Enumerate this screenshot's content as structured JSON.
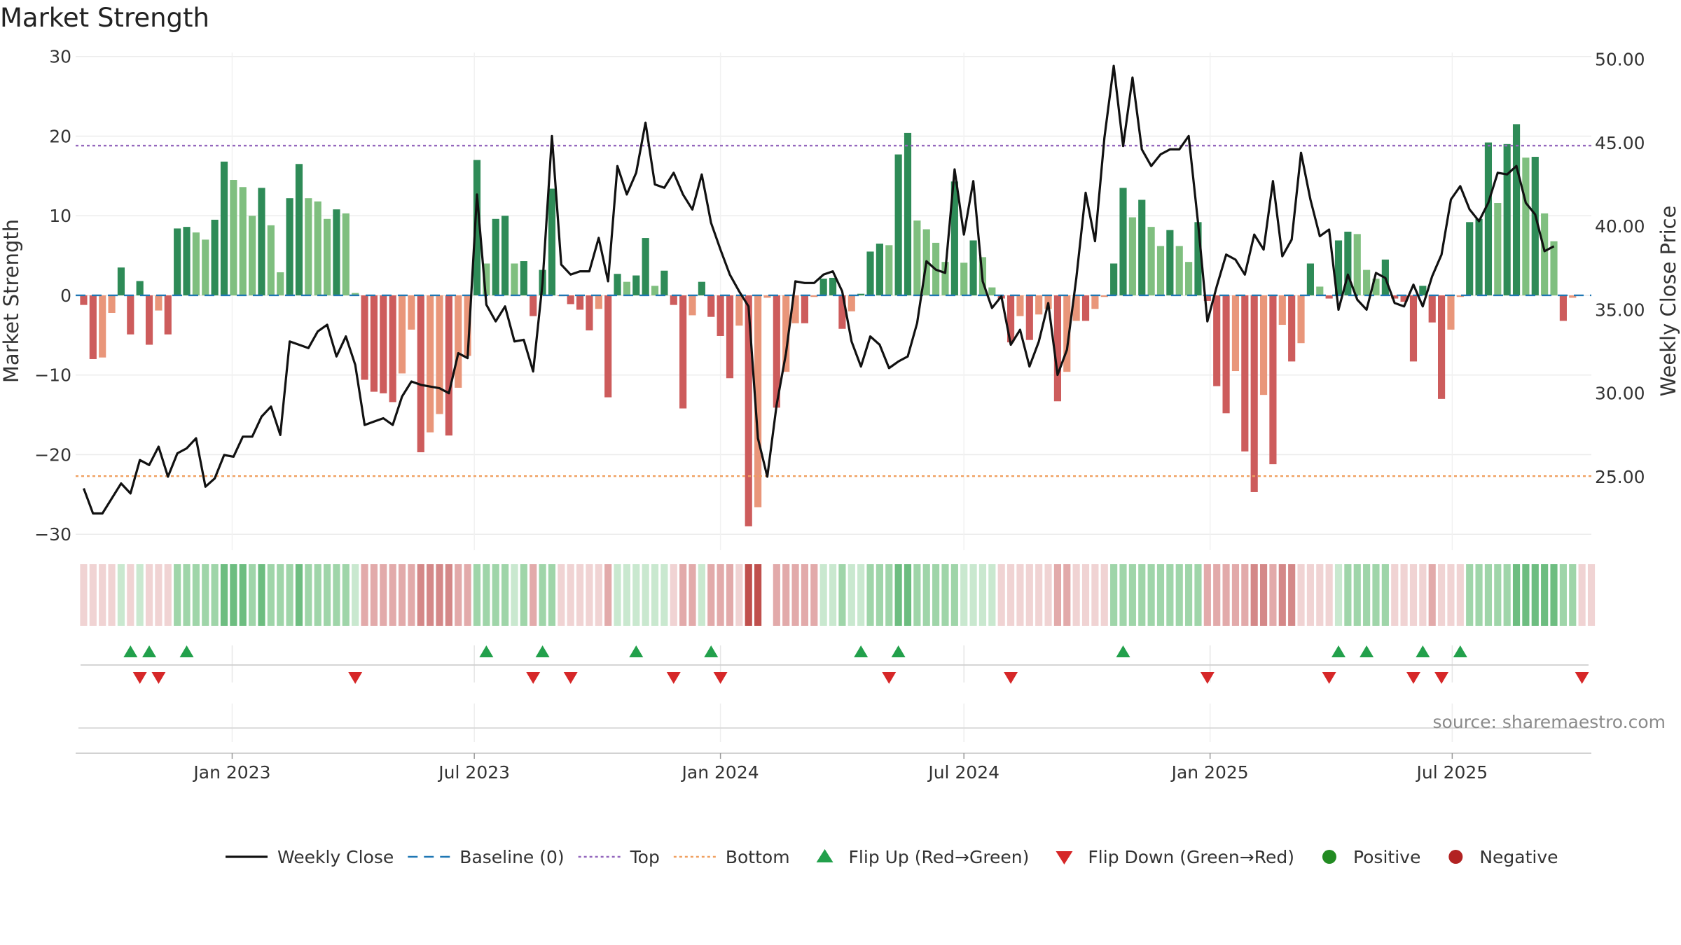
{
  "chart_data": {
    "type": "bar",
    "title": "Market Strength",
    "ylabel": "Market Strength",
    "y2label": "Weekly Close Price",
    "ylim": [
      -32,
      30.5
    ],
    "y2lim": [
      20.6,
      50.4
    ],
    "yticks": [
      -30,
      -20,
      -10,
      0,
      10,
      20,
      30
    ],
    "yticklabels": [
      "−30",
      "−20",
      "−10",
      "0",
      "10",
      "20",
      "30"
    ],
    "y2ticks": [
      25,
      30,
      35,
      40,
      45,
      50
    ],
    "y2ticklabels": [
      "25.00",
      "30.00",
      "35.00",
      "40.00",
      "45.00",
      "50.00"
    ],
    "xlim": [
      "2022-09-06",
      "2025-10-13"
    ],
    "xticks": [
      "2023-01-01",
      "2023-07-01",
      "2024-01-01",
      "2024-07-01",
      "2025-01-01",
      "2025-07-01"
    ],
    "xticklabels": [
      "Jan 2023",
      "Jul 2023",
      "Jan 2024",
      "Jul 2024",
      "Jan 2025",
      "Jul 2025"
    ],
    "grid": true,
    "x_start": "2022-09-12",
    "x_step_days": 7,
    "strength": [
      -1.2,
      -8,
      -7.8,
      -2.2,
      3.5,
      -4.9,
      1.8,
      -6.2,
      -1.9,
      -4.9,
      8.4,
      8.6,
      7.9,
      7,
      9.5,
      16.8,
      14.5,
      13.6,
      10,
      13.5,
      8.8,
      2.9,
      12.2,
      16.5,
      12.2,
      11.8,
      9.6,
      10.8,
      10.3,
      0.3,
      -10.6,
      -12.1,
      -12.3,
      -13.4,
      -9.8,
      -4.3,
      -19.7,
      -17.2,
      -14.9,
      -17.6,
      -11.6,
      -7.6,
      17,
      4,
      9.6,
      10,
      4,
      4.3,
      -2.6,
      3.2,
      13.4,
      -0.1,
      -1.1,
      -1.8,
      -4.4,
      -1.7,
      -12.8,
      2.7,
      1.7,
      2.5,
      7.2,
      1.2,
      3.1,
      -1.2,
      -14.2,
      -2.5,
      1.7,
      -2.7,
      -5.1,
      -10.4,
      -3.8,
      -29,
      -26.6,
      -0.3,
      -14.1,
      -9.6,
      -3.5,
      -3.5,
      -0.2,
      2.1,
      2.2,
      -4.2,
      -2,
      0.2,
      5.5,
      6.5,
      6.3,
      17.7,
      20.4,
      9.4,
      8.3,
      6.6,
      4.2,
      14.3,
      4.1,
      6.9,
      4.8,
      1,
      -0.4,
      -5.9,
      -2.6,
      -5.6,
      -2.4,
      -1.7,
      -13.3,
      -9.6,
      -3.2,
      -3.2,
      -1.7,
      -0.2,
      4,
      13.5,
      9.8,
      12,
      8.6,
      6.2,
      8.2,
      6.2,
      4.2,
      9.2,
      -0.7,
      -11.4,
      -14.8,
      -9.5,
      -19.6,
      -24.7,
      -12.5,
      -21.2,
      -3.7,
      -8.3,
      -6,
      4,
      1.1,
      -0.4,
      6.9,
      8,
      7.7,
      3.2,
      2.1,
      4.5,
      -0.4,
      -0.8,
      -8.3,
      1.2,
      -3.4,
      -13,
      -4.3,
      -0.2,
      9.2,
      9.6,
      19.2,
      11.6,
      19,
      21.5,
      17.3,
      17.4,
      10.3,
      6.8,
      -3.2,
      -0.3
    ],
    "weekly_close": [
      24.3,
      22.8,
      22.8,
      23.7,
      24.6,
      24,
      26,
      25.7,
      26.8,
      25,
      26.4,
      26.7,
      27.3,
      24.4,
      24.9,
      26.3,
      26.2,
      27.4,
      27.4,
      28.6,
      29.2,
      27.5,
      33.1,
      32.9,
      32.7,
      33.7,
      34.1,
      32.2,
      33.4,
      31.7,
      28.1,
      28.3,
      28.5,
      28.1,
      29.8,
      30.7,
      30.5,
      30.4,
      30.3,
      30,
      32.4,
      32.1,
      41.9,
      35.3,
      34.3,
      35.2,
      33.1,
      33.2,
      31.3,
      36.6,
      45.4,
      37.7,
      37.1,
      37.3,
      37.3,
      39.3,
      36.7,
      43.6,
      41.9,
      43.2,
      46.2,
      42.5,
      42.3,
      43.2,
      41.9,
      41,
      43.1,
      40.2,
      38.6,
      37.1,
      36.1,
      35.2,
      27.3,
      25,
      29.3,
      32.4,
      36.7,
      36.6,
      36.6,
      37.1,
      37.3,
      36.1,
      33.1,
      31.6,
      33.4,
      32.9,
      31.5,
      31.9,
      32.2,
      34.2,
      37.9,
      37.4,
      37.2,
      43.4,
      39.5,
      42.7,
      36.7,
      35.1,
      35.8,
      32.9,
      33.8,
      31.6,
      33.1,
      35.4,
      31.1,
      32.6,
      36.9,
      42,
      39.1,
      45.3,
      49.6,
      44.8,
      48.9,
      44.6,
      43.6,
      44.3,
      44.6,
      44.6,
      45.4,
      40.2,
      34.3,
      36.4,
      38.3,
      38,
      37.1,
      39.5,
      38.6,
      42.7,
      38.2,
      39.2,
      44.4,
      41.6,
      39.4,
      39.8,
      35,
      37.1,
      35.6,
      35,
      37.2,
      36.9,
      35.4,
      35.2,
      36.5,
      35.2,
      37,
      38.3,
      41.6,
      42.4,
      41,
      40.3,
      41.4,
      43.2,
      43.1,
      43.6,
      41.4,
      40.7,
      38.5,
      38.8
    ],
    "strip_levels": [
      1,
      1,
      1,
      1,
      -1,
      1,
      -1,
      1,
      1,
      1,
      -2,
      -2,
      -2,
      -2,
      -2,
      -3,
      -3,
      -3,
      -2,
      -3,
      -2,
      -2,
      -2,
      -3,
      -2,
      -2,
      -2,
      -2,
      -2,
      -1,
      2,
      2,
      2,
      2,
      2,
      2,
      3,
      3,
      3,
      3,
      2,
      2,
      -2,
      -2,
      -2,
      -2,
      -1,
      -2,
      2,
      -2,
      -2,
      1,
      1,
      1,
      1,
      1,
      2,
      -1,
      -1,
      -1,
      -1,
      -1,
      -1,
      1,
      2,
      2,
      -1,
      2,
      2,
      2,
      1,
      4,
      4,
      null,
      2,
      2,
      2,
      2,
      2,
      -1,
      -1,
      -2,
      -1,
      -1,
      -2,
      -2,
      -2,
      -3,
      -3,
      -2,
      -2,
      -2,
      -2,
      -2,
      -1,
      -1,
      -1,
      -1,
      1,
      1,
      1,
      1,
      1,
      1,
      2,
      2,
      1,
      1,
      1,
      1,
      -2,
      -2,
      -2,
      -2,
      -2,
      -2,
      -2,
      -2,
      -2,
      -2,
      2,
      2,
      2,
      2,
      2,
      3,
      3,
      2,
      3,
      3,
      1,
      1,
      1,
      1,
      -1,
      -2,
      -2,
      -2,
      -2,
      -2,
      1,
      1,
      1,
      1,
      2,
      1,
      1,
      1,
      -2,
      -2,
      -2,
      -2,
      -2,
      -3,
      -3,
      -3,
      -3,
      -3,
      -2,
      -2,
      1,
      1
    ],
    "flip_up": [
      "2022-10-17",
      "2022-10-31",
      "2022-11-28",
      "2023-07-10",
      "2023-08-21",
      "2023-10-30",
      "2023-12-25",
      "2024-04-15",
      "2024-05-13",
      "2024-10-28",
      "2025-04-07",
      "2025-04-28",
      "2025-06-09",
      "2025-07-07"
    ],
    "flip_down": [
      "2022-10-24",
      "2022-11-07",
      "2023-04-03",
      "2023-08-14",
      "2023-09-11",
      "2023-11-27",
      "2024-01-01",
      "2024-05-06",
      "2024-08-05",
      "2024-12-30",
      "2025-03-31",
      "2025-06-02",
      "2025-06-23",
      "2025-10-06"
    ],
    "top_level": 18.8,
    "bottom_level": -22.7,
    "source": "source: sharemaestro.com",
    "legend": [
      {
        "label": "Weekly Close",
        "marker": "line",
        "color": "#111111"
      },
      {
        "label": "Baseline (0)",
        "marker": "dash",
        "color": "#1f77b4"
      },
      {
        "label": "Top",
        "marker": "dot",
        "color": "#9467bd"
      },
      {
        "label": "Bottom",
        "marker": "dot",
        "color": "#f0a060"
      },
      {
        "label": "Flip Up (Red→Green)",
        "marker": "tri-up",
        "color": "#22a04b"
      },
      {
        "label": "Flip Down (Green→Red)",
        "marker": "tri-down",
        "color": "#d62728"
      },
      {
        "label": "Positive",
        "marker": "circle",
        "color": "#228b22"
      },
      {
        "label": "Negative",
        "marker": "circle",
        "color": "#b22222"
      }
    ],
    "colors": {
      "pos_strong": "#2e8b57",
      "pos_weak": "#7fbf7f",
      "neg_strong": "#cd5c5c",
      "neg_weak": "#e9967a",
      "baseline": "#1f77b4",
      "top": "#9467bd",
      "bottom": "#f0a060",
      "close": "#111111"
    }
  }
}
